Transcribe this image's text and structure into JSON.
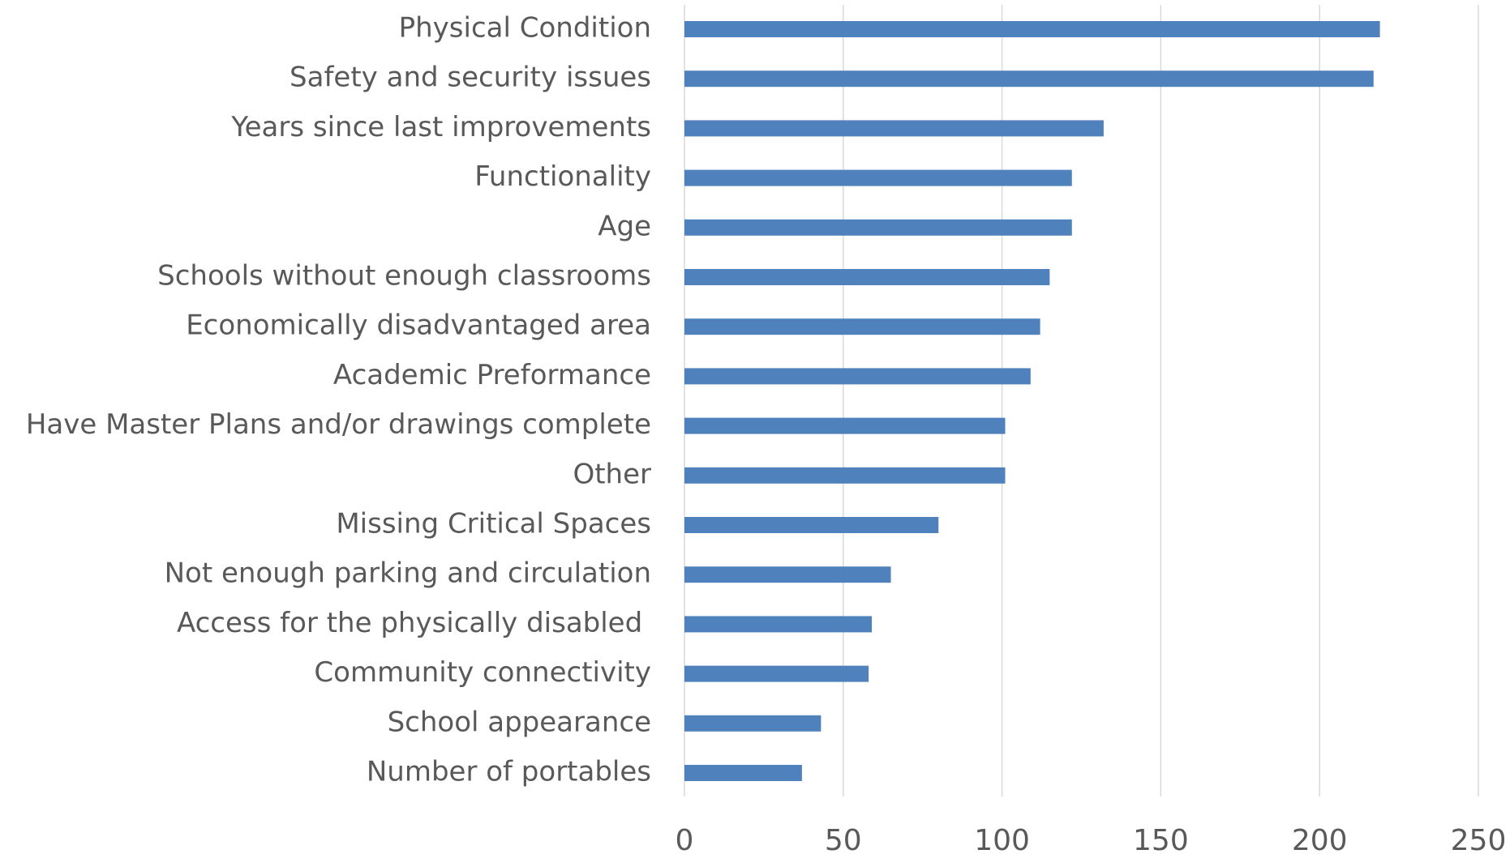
{
  "chart_data": {
    "type": "bar",
    "orientation": "horizontal",
    "categories": [
      "Physical Condition",
      "Safety and security issues",
      "Years since last improvements",
      "Functionality",
      "Age",
      "Schools without enough classrooms",
      "Economically disadvantaged area",
      "Academic Preformance",
      "Have Master Plans and/or drawings complete",
      "Other",
      "Missing Critical Spaces",
      "Not enough parking and circulation",
      "Access for the physically disabled ",
      "Community connectivity",
      "School appearance",
      "Number of portables"
    ],
    "values": [
      219,
      217,
      132,
      122,
      122,
      115,
      112,
      109,
      101,
      101,
      80,
      65,
      59,
      58,
      43,
      37
    ],
    "color": "#4f81bd",
    "xlim": [
      0,
      250
    ],
    "xticks": [
      0,
      50,
      100,
      150,
      200,
      250
    ],
    "grid": true
  }
}
